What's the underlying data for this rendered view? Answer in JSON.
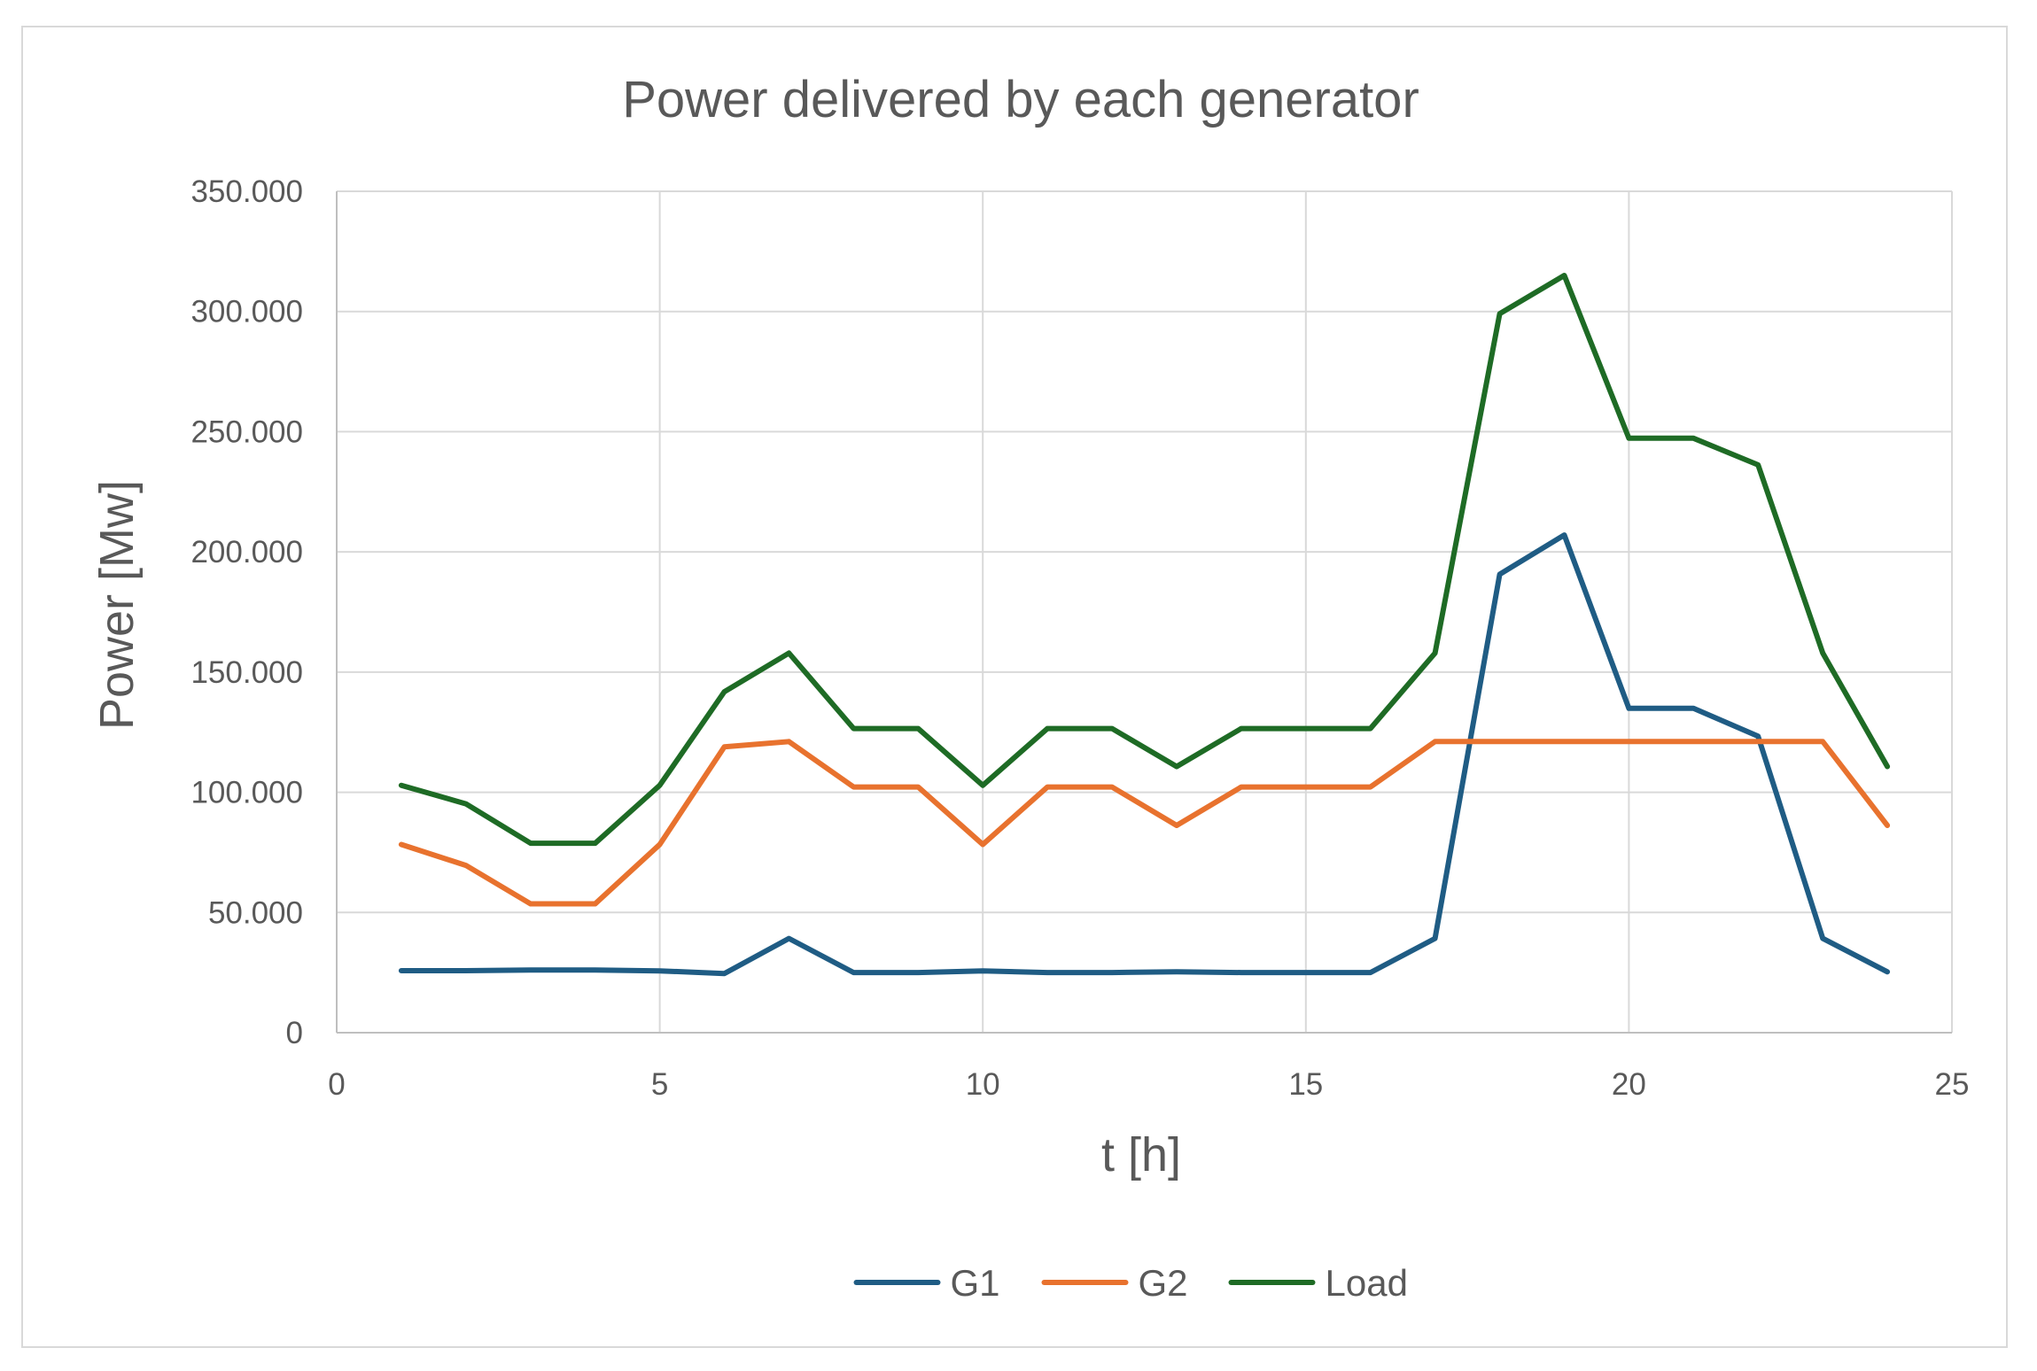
{
  "chart_data": {
    "type": "line",
    "title": "Power delivered by each generator",
    "xlabel": "t [h]",
    "ylabel": "Power [Mw]",
    "xlim": [
      0,
      25
    ],
    "ylim": [
      0,
      350000
    ],
    "x_ticks": [
      0,
      5,
      10,
      15,
      20,
      25
    ],
    "y_ticks": [
      0,
      50000,
      100000,
      150000,
      200000,
      250000,
      300000,
      350000
    ],
    "x_tick_labels": [
      "0",
      "5",
      "10",
      "15",
      "20",
      "25"
    ],
    "y_tick_labels": [
      "0",
      "50.000",
      "100.000",
      "150.000",
      "200.000",
      "250.000",
      "300.000",
      "350.000"
    ],
    "grid": true,
    "legend_position": "bottom",
    "x": [
      1,
      2,
      3,
      4,
      5,
      6,
      7,
      8,
      9,
      10,
      11,
      12,
      13,
      14,
      15,
      16,
      17,
      18,
      19,
      20,
      21,
      22,
      23,
      24
    ],
    "series": [
      {
        "name": "G1",
        "color": "#1f5c84",
        "values": [
          25800,
          25800,
          26100,
          26100,
          25700,
          24600,
          39200,
          25000,
          25000,
          25700,
          25000,
          25000,
          25300,
          25000,
          25000,
          25000,
          39200,
          190700,
          207000,
          134900,
          134900,
          123300,
          39200,
          25300
        ]
      },
      {
        "name": "G2",
        "color": "#e8722e",
        "values": [
          78300,
          69600,
          53600,
          53600,
          78300,
          118900,
          121100,
          102200,
          102200,
          78300,
          102200,
          102200,
          86200,
          102200,
          102200,
          102200,
          121100,
          121100,
          121100,
          121100,
          121100,
          121100,
          121100,
          86200
        ]
      },
      {
        "name": "Load",
        "color": "#1e6b25",
        "values": [
          102900,
          95200,
          78800,
          78800,
          102900,
          141800,
          157900,
          126500,
          126500,
          102900,
          126500,
          126500,
          110700,
          126500,
          126500,
          126500,
          157900,
          299100,
          315000,
          247300,
          247300,
          236200,
          157900,
          110700
        ]
      }
    ]
  }
}
